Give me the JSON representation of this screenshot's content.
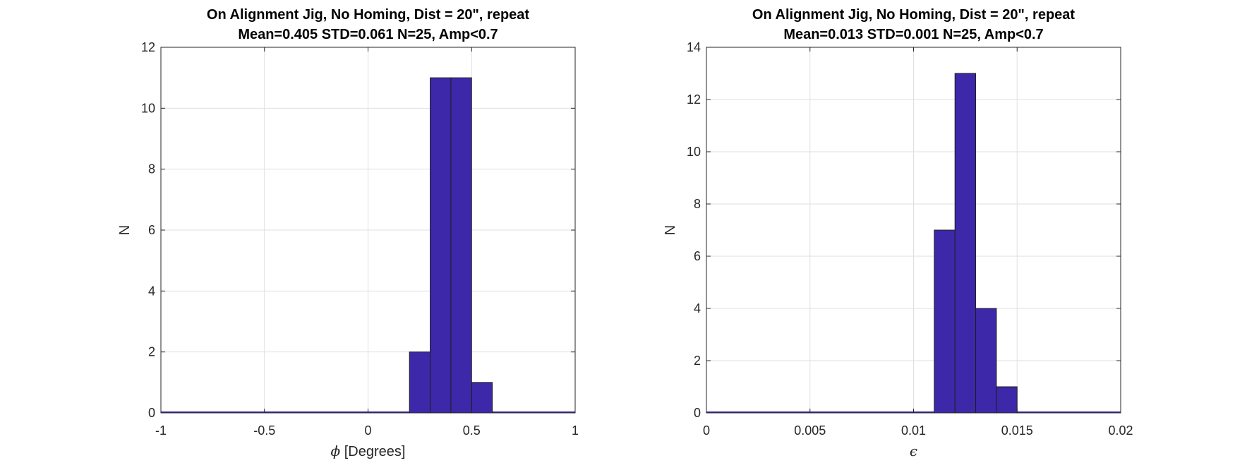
{
  "chart_data": [
    {
      "type": "bar",
      "title": "On Alignment Jig, No Homing, Dist = 20\", repeat",
      "subtitle": "Mean=0.405 STD=0.061 N=25, Amp<0.7",
      "xlabel_symbol": "ϕ",
      "xlabel": "[Degrees]",
      "ylabel": "N",
      "xlim": [
        -1,
        1
      ],
      "ylim": [
        0,
        12
      ],
      "xticks": [
        -1,
        -0.5,
        0,
        0.5,
        1
      ],
      "xtick_labels": [
        "-1",
        "-0.5",
        "0",
        "0.5",
        "1"
      ],
      "yticks": [
        0,
        2,
        4,
        6,
        8,
        10,
        12
      ],
      "ytick_labels": [
        "0",
        "2",
        "4",
        "6",
        "8",
        "10",
        "12"
      ],
      "bin_edges": [
        0.2,
        0.3,
        0.4,
        0.5,
        0.6
      ],
      "values": [
        2,
        11,
        11,
        1
      ],
      "grid": true,
      "bar_color": "#3c28a8"
    },
    {
      "type": "bar",
      "title": "On Alignment Jig, No Homing, Dist = 20\", repeat",
      "subtitle": "Mean=0.013 STD=0.001 N=25, Amp<0.7",
      "xlabel_symbol": "ϵ",
      "xlabel": "",
      "ylabel": "N",
      "xlim": [
        0,
        0.02
      ],
      "ylim": [
        0,
        14
      ],
      "xticks": [
        0,
        0.005,
        0.01,
        0.015,
        0.02
      ],
      "xtick_labels": [
        "0",
        "0.005",
        "0.01",
        "0.015",
        "0.02"
      ],
      "yticks": [
        0,
        2,
        4,
        6,
        8,
        10,
        12,
        14
      ],
      "ytick_labels": [
        "0",
        "2",
        "4",
        "6",
        "8",
        "10",
        "12",
        "14"
      ],
      "bin_edges": [
        0.011,
        0.012,
        0.013,
        0.014,
        0.015
      ],
      "values": [
        7,
        13,
        4,
        1
      ],
      "grid": true,
      "bar_color": "#3c28a8"
    }
  ]
}
